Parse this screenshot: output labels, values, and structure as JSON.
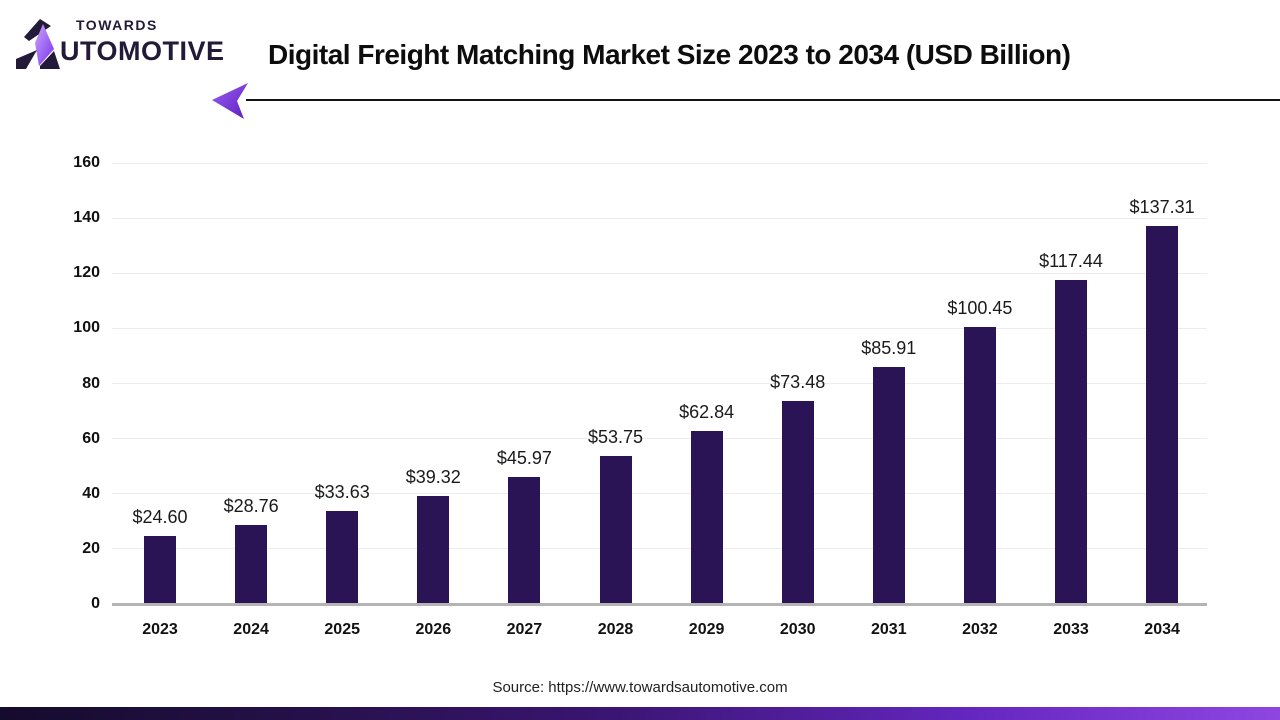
{
  "header": {
    "brand": {
      "line1": "TOWARDS",
      "line2": "AUTOMOTIVE",
      "line2_after_mark": "UTOMOTIVE"
    },
    "title": "Digital Freight Matching Market Size 2023 to 2034 (USD Billion)"
  },
  "chart_data": {
    "type": "bar",
    "title": "Digital Freight Matching Market Size 2023 to 2034 (USD Billion)",
    "categories": [
      "2023",
      "2024",
      "2025",
      "2026",
      "2027",
      "2028",
      "2029",
      "2030",
      "2031",
      "2032",
      "2033",
      "2034"
    ],
    "values": [
      24.6,
      28.76,
      33.63,
      39.32,
      45.97,
      53.75,
      62.84,
      73.48,
      85.91,
      100.45,
      117.44,
      137.31
    ],
    "value_labels": [
      "$24.60",
      "$28.76",
      "$33.63",
      "$39.32",
      "$45.97",
      "$53.75",
      "$62.84",
      "$73.48",
      "$85.91",
      "$100.45",
      "$117.44",
      "$137.31"
    ],
    "xlabel": "",
    "ylabel": "",
    "ylim": [
      0,
      160
    ],
    "yticks": [
      0,
      20,
      40,
      60,
      80,
      100,
      120,
      140,
      160
    ],
    "grid": "horizontal-light",
    "legend": "none",
    "bar_color": "#2a1455",
    "gridline_color": "#ececec",
    "baseline_color": "#b4b4b4"
  },
  "footer": {
    "source": "Source: https://www.towardsautomotive.com"
  },
  "colors": {
    "brand_text": "#221a38",
    "accent_purple": "#7c3aed",
    "footer_gradient_left": "#150b2d",
    "footer_gradient_right": "#8f46e0"
  }
}
